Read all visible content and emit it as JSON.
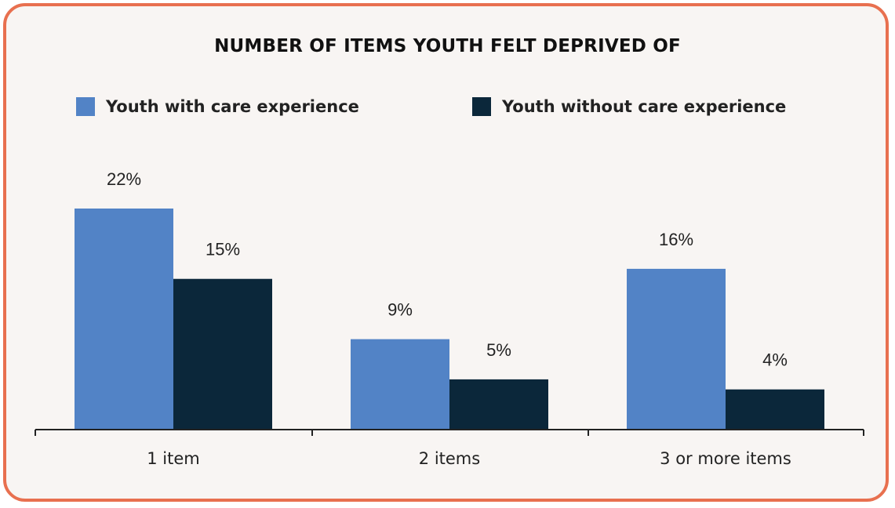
{
  "chart_data": {
    "type": "bar",
    "title": "NUMBER OF ITEMS YOUTH FELT DEPRIVED OF",
    "categories": [
      "1 item",
      "2 items",
      "3 or more items"
    ],
    "series": [
      {
        "name": "Youth with care experience",
        "values": [
          22,
          9,
          16
        ],
        "labels": [
          "22%",
          "9%",
          "16%"
        ],
        "color": "#5283c6"
      },
      {
        "name": "Youth without care experience",
        "values": [
          15,
          5,
          4
        ],
        "labels": [
          "15%",
          "5%",
          "4%"
        ],
        "color": "#0b273a"
      }
    ],
    "ylim": [
      0,
      22
    ],
    "unit": "%",
    "grid": false,
    "legend_position": "top"
  },
  "colors": {
    "frame_border": "#e8704f",
    "background": "#f8f5f3",
    "axis": "#222222"
  }
}
